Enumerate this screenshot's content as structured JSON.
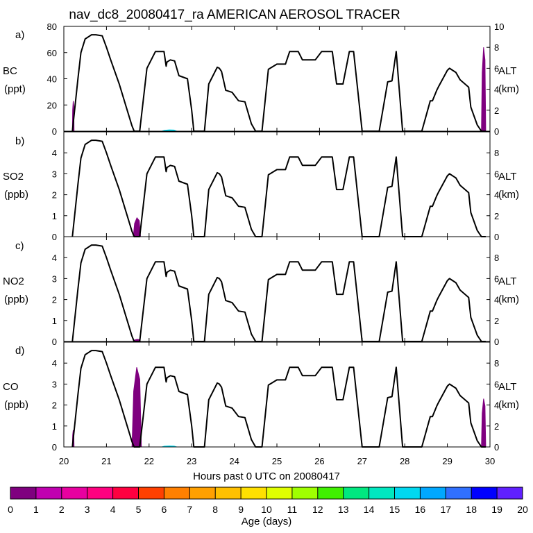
{
  "title": "nav_dc8_20080417_ra AMERICAN AEROSOL TRACER",
  "xlabel": "Hours past 0 UTC on 20080417",
  "colorbar": {
    "label": "Age (days)",
    "ticks": [
      "0",
      "1",
      "2",
      "3",
      "4",
      "5",
      "6",
      "7",
      "8",
      "9",
      "10",
      "11",
      "12",
      "13",
      "14",
      "15",
      "16",
      "17",
      "18",
      "19",
      "20"
    ],
    "colors": [
      "#7f007f",
      "#c000b0",
      "#e800a0",
      "#ff0080",
      "#ff0040",
      "#ff4000",
      "#ff8000",
      "#ffa000",
      "#ffc000",
      "#ffe000",
      "#e0ff00",
      "#a0ff00",
      "#40f000",
      "#00e880",
      "#00e8c0",
      "#00d8f0",
      "#00a8ff",
      "#3070ff",
      "#0000ff",
      "#6020ff"
    ]
  },
  "chart_data": [
    {
      "type": "line",
      "panel": "a)",
      "species": "BC",
      "unit": "(ppt)",
      "ylim": [
        0,
        80
      ],
      "yticks": [
        "0",
        "20",
        "40",
        "60",
        "80"
      ],
      "y2label": "ALT",
      "y2unit": "(km)",
      "y2lim": [
        0,
        10
      ],
      "y2ticks": [
        "0",
        "2",
        "4",
        "6",
        "8",
        "10"
      ],
      "xlim": [
        20,
        30
      ],
      "xticks": [
        "20",
        "21",
        "22",
        "23",
        "24",
        "25",
        "26",
        "27",
        "28",
        "29",
        "30"
      ],
      "tracer_segments": [
        {
          "x0": 20.2,
          "x1": 20.24,
          "peak": 23,
          "color": "#7f007f"
        },
        {
          "x0": 29.8,
          "x1": 29.9,
          "peak": 64,
          "color": "#7f007f"
        },
        {
          "x0": 22.3,
          "x1": 22.65,
          "peak": 1,
          "color": "#00d8f0"
        }
      ]
    },
    {
      "type": "line",
      "panel": "b)",
      "species": "SO2",
      "unit": "(ppb)",
      "ylim": [
        0,
        5
      ],
      "yticks": [
        "0",
        "1",
        "2",
        "3",
        "4"
      ],
      "y2label": "ALT",
      "y2unit": "(km)",
      "y2lim": [
        0,
        10
      ],
      "y2ticks": [
        "0",
        "2",
        "4",
        "6",
        "8"
      ],
      "xlim": [
        20,
        30
      ],
      "tracer_segments": [
        {
          "x0": 21.63,
          "x1": 21.8,
          "peak": 0.9,
          "color": "#7f007f"
        }
      ]
    },
    {
      "type": "line",
      "panel": "c)",
      "species": "NO2",
      "unit": "(ppb)",
      "ylim": [
        0,
        5
      ],
      "yticks": [
        "0",
        "1",
        "2",
        "3",
        "4"
      ],
      "y2label": "ALT",
      "y2unit": "(km)",
      "y2lim": [
        0,
        10
      ],
      "y2ticks": [
        "0",
        "2",
        "4",
        "6",
        "8"
      ],
      "xlim": [
        20,
        30
      ],
      "tracer_segments": [
        {
          "x0": 21.63,
          "x1": 21.8,
          "peak": 0.1,
          "color": "#7f007f"
        }
      ]
    },
    {
      "type": "line",
      "panel": "d)",
      "species": "CO",
      "unit": "(ppb)",
      "ylim": [
        0,
        5
      ],
      "yticks": [
        "0",
        "1",
        "2",
        "3",
        "4"
      ],
      "y2label": "ALT",
      "y2unit": "(km)",
      "y2lim": [
        0,
        10
      ],
      "y2ticks": [
        "0",
        "2",
        "4",
        "6",
        "8"
      ],
      "xlim": [
        20,
        30
      ],
      "xticks": [
        "20",
        "21",
        "22",
        "23",
        "24",
        "25",
        "26",
        "27",
        "28",
        "29",
        "30"
      ],
      "tracer_segments": [
        {
          "x0": 20.2,
          "x1": 20.24,
          "peak": 0.8,
          "color": "#7f007f"
        },
        {
          "x0": 21.6,
          "x1": 21.82,
          "peak": 3.8,
          "color": "#7f007f"
        },
        {
          "x0": 29.8,
          "x1": 29.9,
          "peak": 2.3,
          "color": "#7f007f"
        },
        {
          "x0": 22.3,
          "x1": 22.65,
          "peak": 0.05,
          "color": "#00d8f0"
        }
      ]
    }
  ],
  "altitude_track": {
    "series": "ALT (km)",
    "x": [
      20.2,
      20.33,
      20.4,
      20.5,
      20.65,
      20.75,
      20.9,
      21.0,
      21.1,
      21.3,
      21.45,
      21.6,
      21.65,
      21.78,
      21.95,
      22.15,
      22.35,
      22.4,
      22.42,
      22.5,
      22.6,
      22.7,
      22.9,
      23.0,
      23.05,
      23.3,
      23.4,
      23.6,
      23.65,
      23.7,
      23.8,
      23.95,
      24.1,
      24.25,
      24.4,
      24.5,
      24.65,
      24.8,
      25.0,
      25.2,
      25.3,
      25.5,
      25.6,
      25.9,
      26.05,
      26.3,
      26.4,
      26.55,
      26.7,
      26.8,
      27.0,
      27.05,
      27.4,
      27.6,
      27.7,
      27.8,
      27.95,
      28.15,
      28.4,
      28.6,
      28.65,
      28.75,
      28.8,
      29.0,
      29.05,
      29.2,
      29.3,
      29.5,
      29.55,
      29.7,
      29.8,
      29.9
    ],
    "y": [
      0,
      5,
      7.5,
      8.8,
      9.2,
      9.2,
      9.1,
      8.0,
      6.8,
      4.5,
      2.5,
      0.5,
      0,
      0,
      6.0,
      7.6,
      7.6,
      6.2,
      6.6,
      6.8,
      6.7,
      5.3,
      5.0,
      2.0,
      0,
      0,
      4.5,
      6.1,
      6.0,
      5.7,
      3.9,
      3.7,
      2.9,
      2.8,
      0.7,
      0,
      0,
      5.9,
      6.4,
      6.4,
      7.6,
      7.6,
      6.8,
      6.8,
      7.6,
      7.6,
      4.5,
      4.5,
      7.6,
      7.6,
      0,
      0,
      0,
      4.7,
      4.8,
      7.6,
      0,
      0,
      0,
      2.9,
      2.9,
      3.9,
      4.3,
      5.8,
      6.0,
      5.6,
      4.9,
      4.2,
      2.3,
      0.6,
      0,
      0
    ]
  }
}
